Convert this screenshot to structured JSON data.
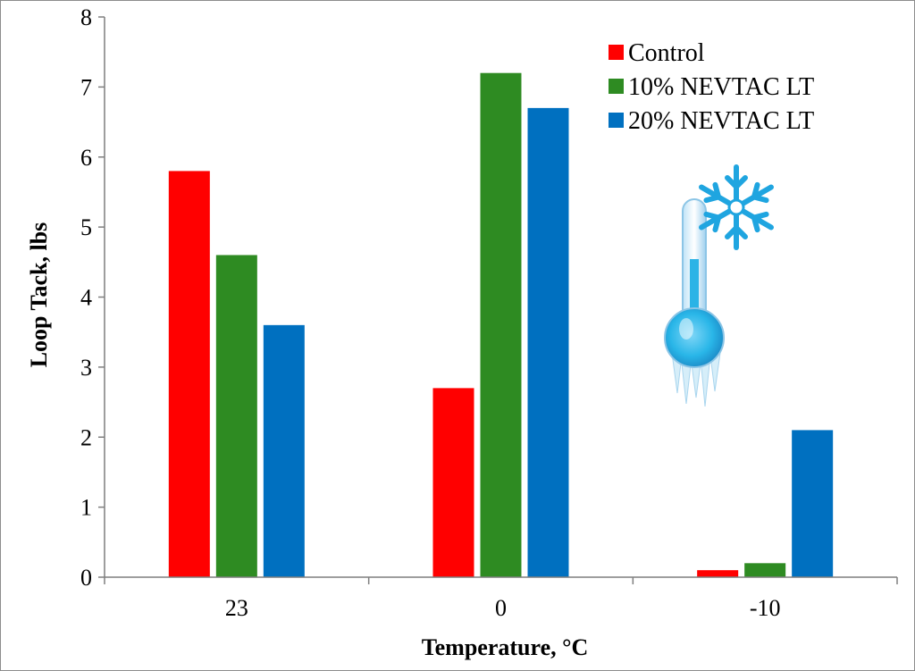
{
  "chart_data": {
    "type": "bar",
    "title": "",
    "xlabel": "Temperature, °C",
    "ylabel": "Loop Tack, lbs",
    "categories": [
      "23",
      "0",
      "-10"
    ],
    "ylim": [
      0,
      8
    ],
    "yticks": [
      "0",
      "1",
      "2",
      "3",
      "4",
      "5",
      "6",
      "7",
      "8"
    ],
    "grid": false,
    "legend_position": "top-right",
    "series": [
      {
        "name": "Control",
        "values": [
          5.8,
          2.7,
          0.1
        ]
      },
      {
        "name": "10% NEVTAC LT",
        "values": [
          4.6,
          7.2,
          0.2
        ]
      },
      {
        "name": "20% NEVTAC LT",
        "values": [
          3.6,
          6.7,
          2.1
        ]
      }
    ],
    "annotations": [
      {
        "icon": "thermometer-snowflake-icon"
      }
    ]
  },
  "colors": {
    "series": [
      "#ff0000",
      "#2e8b22",
      "#0070c0"
    ],
    "axis": "#7f7f7f"
  }
}
